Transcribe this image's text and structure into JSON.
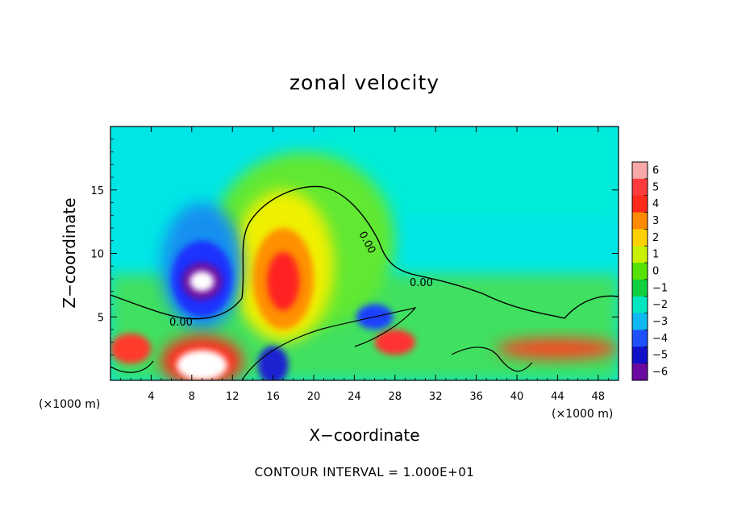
{
  "chart_data": {
    "type": "heatmap",
    "title": "zonal velocity",
    "xlabel": "X−coordinate",
    "ylabel": "Z−coordinate",
    "x_unit_left": "(×1000 m)",
    "x_unit_right": "(×1000 m)",
    "xlim": [
      0,
      50
    ],
    "ylim": [
      0,
      20
    ],
    "x_ticks": [
      4,
      8,
      12,
      16,
      20,
      24,
      28,
      32,
      36,
      40,
      44,
      48
    ],
    "x_tick_labels": [
      "4",
      "8",
      "12",
      "16",
      "20",
      "24",
      "28",
      "32",
      "36",
      "40",
      "44",
      "48"
    ],
    "y_ticks": [
      5,
      10,
      15
    ],
    "y_tick_labels": [
      "5",
      "10",
      "15"
    ],
    "colorbar": {
      "values": [
        6,
        5,
        4,
        3,
        2,
        1,
        0,
        -1,
        -2,
        -3,
        -4,
        -5,
        -6
      ],
      "labels": [
        "6",
        "5",
        "4",
        "3",
        "2",
        "1",
        "0",
        "−1",
        "−2",
        "−3",
        "−4",
        "−5",
        "−6"
      ],
      "colors": [
        "#f7a8a8",
        "#ff3b3b",
        "#ff2a1a",
        "#ff8a00",
        "#ffd000",
        "#c8f000",
        "#55e200",
        "#10d040",
        "#00e6c0",
        "#0fb8f0",
        "#1e50ff",
        "#1010c8",
        "#6a0aa0"
      ]
    },
    "contour_label": "0.00",
    "footnote": "CONTOUR INTERVAL = 1.000E+01",
    "grid": false,
    "features": [
      {
        "kind": "background",
        "value": -2,
        "color": "#00e8e8"
      },
      {
        "kind": "blob",
        "x": 19,
        "y": 11,
        "rx": 9,
        "ry": 7,
        "value": 0.5,
        "color": "#60e830"
      },
      {
        "kind": "blob",
        "x": 17,
        "y": 9,
        "rx": 5,
        "ry": 6,
        "value": 2,
        "color": "#f0f000"
      },
      {
        "kind": "blob",
        "x": 17,
        "y": 8,
        "rx": 3,
        "ry": 4,
        "value": 3,
        "color": "#ff9000"
      },
      {
        "kind": "blob",
        "x": 17,
        "y": 7.8,
        "rx": 1.6,
        "ry": 2.3,
        "value": 5,
        "color": "#ff2020"
      },
      {
        "kind": "blob",
        "x": 9,
        "y": 9,
        "rx": 4,
        "ry": 5,
        "value": -3,
        "color": "#1590f0"
      },
      {
        "kind": "blob",
        "x": 9,
        "y": 8,
        "rx": 3,
        "ry": 3,
        "value": -4,
        "color": "#1a30ff"
      },
      {
        "kind": "blob",
        "x": 9,
        "y": 7.8,
        "rx": 2,
        "ry": 1.5,
        "value": -6,
        "color": "#6a0aa0"
      },
      {
        "kind": "blob",
        "x": 9,
        "y": 7.8,
        "rx": 1.2,
        "ry": 0.8,
        "value": -7,
        "color": "#ffffff"
      },
      {
        "kind": "blob",
        "x": 9,
        "y": 1.5,
        "rx": 4,
        "ry": 2,
        "value": 5,
        "color": "#ff2a1a"
      },
      {
        "kind": "blob",
        "x": 9,
        "y": 1.2,
        "rx": 2.5,
        "ry": 1.2,
        "value": 7,
        "color": "#ffffff"
      },
      {
        "kind": "blob",
        "x": 16,
        "y": 1.2,
        "rx": 1.5,
        "ry": 1.5,
        "value": -5,
        "color": "#1a20d0"
      },
      {
        "kind": "blob",
        "x": 28,
        "y": 3,
        "rx": 2,
        "ry": 1,
        "value": 4,
        "color": "#ff3030"
      },
      {
        "kind": "blob",
        "x": 26,
        "y": 5,
        "rx": 1.8,
        "ry": 1,
        "value": -4,
        "color": "#1a40ff"
      },
      {
        "kind": "blob",
        "x": 44,
        "y": 2.5,
        "rx": 6,
        "ry": 0.8,
        "value": 4,
        "color": "#ff4020"
      },
      {
        "kind": "blob",
        "x": 2,
        "y": 2.5,
        "rx": 2,
        "ry": 1.2,
        "value": 4,
        "color": "#ff3a2a"
      }
    ]
  }
}
